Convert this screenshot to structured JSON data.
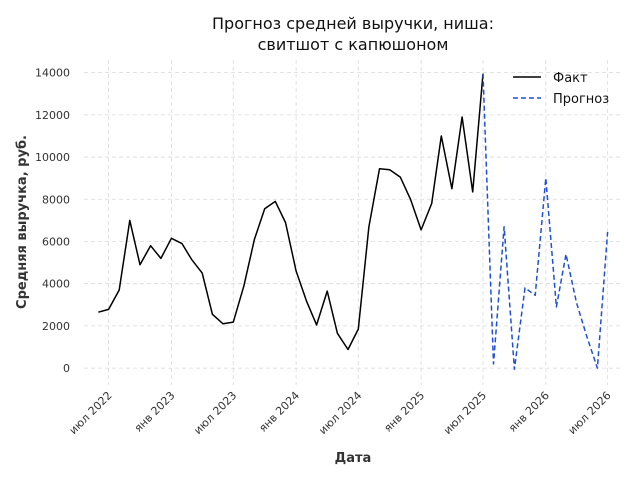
{
  "chart_data": {
    "type": "line",
    "title_lines": [
      "Прогноз средней выручки, ниша:",
      "свитшот с капюшоном"
    ],
    "xlabel": "Дата",
    "ylabel": "Средняя выручка, руб.",
    "xlim": [
      "2022-04-20",
      "2026-08-15"
    ],
    "ylim": [
      -800,
      14600
    ],
    "yticks": [
      0,
      2000,
      4000,
      6000,
      8000,
      10000,
      12000,
      14000
    ],
    "xticks": [
      {
        "date": "2022-07-01",
        "label": "июл 2022"
      },
      {
        "date": "2023-01-01",
        "label": "янв 2023"
      },
      {
        "date": "2023-07-01",
        "label": "июл 2023"
      },
      {
        "date": "2024-01-01",
        "label": "янв 2024"
      },
      {
        "date": "2024-07-01",
        "label": "июл 2024"
      },
      {
        "date": "2025-01-01",
        "label": "янв 2025"
      },
      {
        "date": "2025-07-01",
        "label": "июл 2025"
      },
      {
        "date": "2026-01-01",
        "label": "янв 2026"
      },
      {
        "date": "2026-07-01",
        "label": "июл 2026"
      }
    ],
    "grid": true,
    "legend_position": "top-right",
    "series": [
      {
        "name": "Факт",
        "color": "#000000",
        "style": "solid",
        "points": [
          [
            "2022-06-01",
            2650
          ],
          [
            "2022-07-01",
            2780
          ],
          [
            "2022-08-01",
            3700
          ],
          [
            "2022-09-01",
            7000
          ],
          [
            "2022-10-01",
            4900
          ],
          [
            "2022-11-01",
            5800
          ],
          [
            "2022-12-01",
            5200
          ],
          [
            "2023-01-01",
            6150
          ],
          [
            "2023-02-01",
            5900
          ],
          [
            "2023-03-01",
            5150
          ],
          [
            "2023-04-01",
            4500
          ],
          [
            "2023-05-01",
            2550
          ],
          [
            "2023-06-01",
            2100
          ],
          [
            "2023-07-01",
            2180
          ],
          [
            "2023-08-01",
            3900
          ],
          [
            "2023-09-01",
            6100
          ],
          [
            "2023-10-01",
            7550
          ],
          [
            "2023-11-01",
            7900
          ],
          [
            "2023-12-01",
            6900
          ],
          [
            "2024-01-01",
            4600
          ],
          [
            "2024-02-01",
            3150
          ],
          [
            "2024-03-01",
            2050
          ],
          [
            "2024-04-01",
            3650
          ],
          [
            "2024-05-01",
            1650
          ],
          [
            "2024-06-01",
            880
          ],
          [
            "2024-07-01",
            1850
          ],
          [
            "2024-08-01",
            6700
          ],
          [
            "2024-09-01",
            9450
          ],
          [
            "2024-10-01",
            9400
          ],
          [
            "2024-11-01",
            9050
          ],
          [
            "2024-12-01",
            8000
          ],
          [
            "2025-01-01",
            6550
          ],
          [
            "2025-02-01",
            7800
          ],
          [
            "2025-03-01",
            11000
          ],
          [
            "2025-04-01",
            8500
          ],
          [
            "2025-05-01",
            11900
          ],
          [
            "2025-06-01",
            8350
          ],
          [
            "2025-07-01",
            13950
          ]
        ]
      },
      {
        "name": "Прогноз",
        "color": "#1f4fd6",
        "style": "dashed",
        "points": [
          [
            "2025-07-01",
            13950
          ],
          [
            "2025-08-01",
            200
          ],
          [
            "2025-09-01",
            6700
          ],
          [
            "2025-10-01",
            -50
          ],
          [
            "2025-11-01",
            3800
          ],
          [
            "2025-12-01",
            3450
          ],
          [
            "2026-01-01",
            9000
          ],
          [
            "2026-02-01",
            2900
          ],
          [
            "2026-03-01",
            5400
          ],
          [
            "2026-04-01",
            3100
          ],
          [
            "2026-05-01",
            1500
          ],
          [
            "2026-06-01",
            0
          ],
          [
            "2026-07-01",
            6450
          ]
        ]
      }
    ]
  }
}
